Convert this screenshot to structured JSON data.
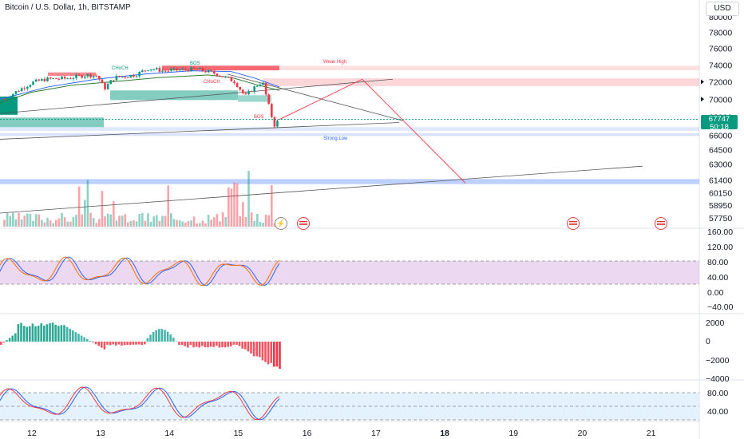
{
  "header": {
    "title": "Bitcoin / U.S. Dollar, 1h, BITSTAMP",
    "currency_button": "USD"
  },
  "price_tag": {
    "price": "67747",
    "countdown": "50:18"
  },
  "annotations": [
    {
      "text": "Weak High",
      "color": "#f23645"
    },
    {
      "text": "BOS",
      "color": "#089981"
    },
    {
      "text": "CHoCH",
      "color": "#089981"
    },
    {
      "text": "CHoCH",
      "color": "#f23645"
    },
    {
      "text": "BOS",
      "color": "#f23645"
    },
    {
      "text": "Strong Low",
      "color": "#2962ff"
    }
  ],
  "colors": {
    "up": "#089981",
    "down": "#f23645",
    "rsi_band": "#e1bee7",
    "stoch_band": "#e3f2fd"
  },
  "chart_data": [
    {
      "type": "candlestick",
      "title": "Bitcoin / U.S. Dollar, 1h, BITSTAMP",
      "x_ticks": [
        "12",
        "13",
        "14",
        "15",
        "16",
        "17",
        "18",
        "19",
        "20",
        "21"
      ],
      "y_ticks": [
        80000,
        78000,
        76000,
        74000,
        72000,
        70000,
        68000,
        66000,
        64500,
        63000,
        61400,
        60150,
        58950,
        57750
      ],
      "ylim": [
        57000,
        81000
      ],
      "scale": "log",
      "last_price": 67747,
      "weak_high": 73600,
      "strong_low": 66200,
      "close_path": [
        {
          "x": 11.6,
          "y": 70000
        },
        {
          "x": 11.8,
          "y": 71000
        },
        {
          "x": 12.0,
          "y": 71900
        },
        {
          "x": 12.2,
          "y": 72300
        },
        {
          "x": 12.5,
          "y": 72400
        },
        {
          "x": 12.8,
          "y": 72800
        },
        {
          "x": 12.95,
          "y": 72700
        },
        {
          "x": 13.05,
          "y": 71200
        },
        {
          "x": 13.2,
          "y": 72500
        },
        {
          "x": 13.5,
          "y": 72800
        },
        {
          "x": 13.7,
          "y": 73600
        },
        {
          "x": 13.9,
          "y": 73300
        },
        {
          "x": 14.1,
          "y": 73400
        },
        {
          "x": 14.4,
          "y": 73500
        },
        {
          "x": 14.7,
          "y": 72900
        },
        {
          "x": 14.95,
          "y": 72000
        },
        {
          "x": 15.1,
          "y": 70300
        },
        {
          "x": 15.25,
          "y": 71500
        },
        {
          "x": 15.35,
          "y": 72000
        },
        {
          "x": 15.45,
          "y": 69000
        },
        {
          "x": 15.52,
          "y": 67100
        },
        {
          "x": 15.6,
          "y": 67747
        }
      ],
      "projection": [
        {
          "x": 15.6,
          "y": 67747
        },
        {
          "x": 16.8,
          "y": 72300
        },
        {
          "x": 18.3,
          "y": 61100
        }
      ]
    },
    {
      "type": "bar",
      "name": "Volume",
      "note": "volume histogram below price"
    },
    {
      "type": "line",
      "name": "RSI / Stoch",
      "y_ticks": [
        160,
        120,
        80,
        40,
        0,
        -40
      ],
      "band": [
        20,
        80
      ]
    },
    {
      "type": "bar",
      "name": "MACD histogram",
      "y_ticks": [
        2000,
        0,
        -2000,
        -4000
      ]
    },
    {
      "type": "line",
      "name": "Stochastic",
      "y_ticks": [
        80,
        40
      ],
      "band": [
        20,
        80
      ]
    }
  ]
}
